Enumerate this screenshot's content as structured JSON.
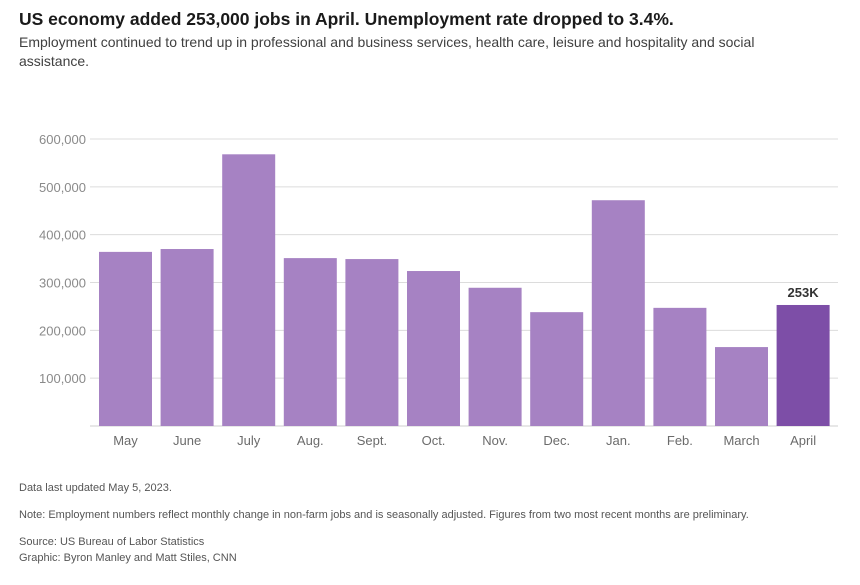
{
  "chart_data": {
    "type": "bar",
    "title": "US economy added 253,000 jobs in April. Unemployment rate dropped to 3.4%.",
    "subtitle": "Employment continued to trend up in professional and business services, health care, leisure and hospitality and social assistance.",
    "categories": [
      "May",
      "June",
      "July",
      "Aug.",
      "Sept.",
      "Oct.",
      "Nov.",
      "Dec.",
      "Jan.",
      "Feb.",
      "March",
      "April"
    ],
    "values": [
      364000,
      370000,
      568000,
      351000,
      349000,
      324000,
      289000,
      238000,
      472000,
      247000,
      165000,
      253000
    ],
    "highlight_index": 11,
    "highlight_label": "253K",
    "yticks": [
      100000,
      200000,
      300000,
      400000,
      500000,
      600000
    ],
    "ytick_labels": [
      "100,000",
      "200,000",
      "300,000",
      "400,000",
      "500,000",
      "600,000"
    ],
    "ylim": [
      0,
      600000
    ],
    "grid": true,
    "xlabel": "",
    "ylabel": ""
  },
  "colors": {
    "bar": "#a682c3",
    "highlight": "#7d4ea7",
    "grid": "#dcdcdc"
  },
  "footer": {
    "updated": "Data last updated May 5, 2023.",
    "note": "Note: Employment numbers reflect monthly change in non-farm jobs and is seasonally adjusted. Figures from two most recent months are preliminary.",
    "source": "Source: US Bureau of Labor Statistics",
    "graphic": "Graphic: Byron Manley and Matt Stiles, CNN"
  }
}
